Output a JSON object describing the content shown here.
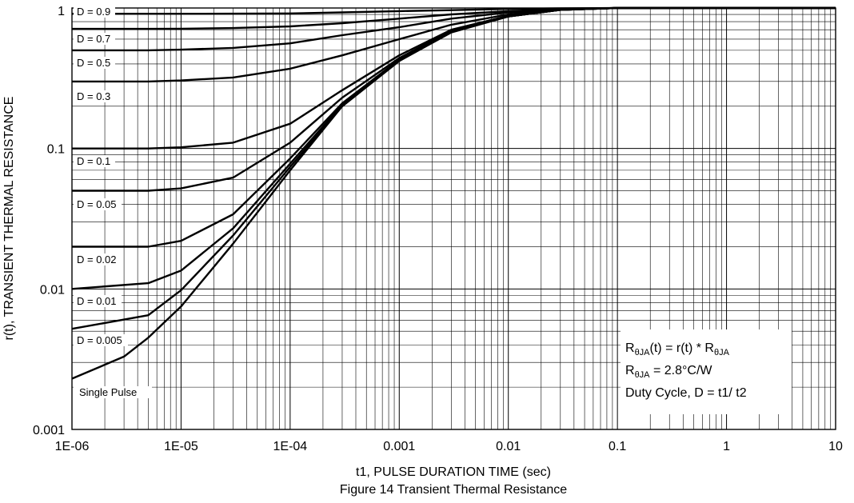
{
  "chart_data": {
    "type": "line",
    "title": "Figure 14 Transient Thermal Resistance",
    "xlabel": "t1, PULSE DURATION TIME (sec)",
    "ylabel": "r(t), TRANSIENT THERMAL RESISTANCE",
    "x_scale": "log",
    "y_scale": "log",
    "xlim": [
      1e-06,
      10
    ],
    "ylim": [
      0.001,
      1
    ],
    "grid": true,
    "x_ticks": [
      1e-06,
      1e-05,
      0.0001,
      0.001,
      0.01,
      0.1,
      1,
      10
    ],
    "x_tick_labels": [
      "1E-06",
      "1E-05",
      "1E-04",
      "0.001",
      "0.01",
      "0.1",
      "1",
      "10"
    ],
    "y_ticks": [
      0.001,
      0.01,
      0.1,
      1
    ],
    "y_tick_labels": [
      "0.001",
      "0.01",
      "0.1",
      "1"
    ],
    "series": [
      {
        "name": "D = 0.9",
        "x": [
          1e-06,
          5e-06,
          1e-05,
          3e-05,
          0.0001,
          0.0003,
          0.001,
          0.003,
          0.01,
          0.03,
          0.1,
          10
        ],
        "y": [
          0.91,
          0.91,
          0.91,
          0.911,
          0.915,
          0.93,
          0.95,
          0.965,
          0.985,
          0.995,
          1.0,
          1.0
        ]
      },
      {
        "name": "D = 0.7",
        "x": [
          1e-06,
          5e-06,
          1e-05,
          3e-05,
          0.0001,
          0.0003,
          0.001,
          0.003,
          0.01,
          0.03,
          0.1,
          10
        ],
        "y": [
          0.71,
          0.71,
          0.712,
          0.72,
          0.74,
          0.78,
          0.84,
          0.9,
          0.95,
          0.985,
          1.0,
          1.0
        ]
      },
      {
        "name": "D = 0.5",
        "x": [
          1e-06,
          5e-06,
          1e-05,
          3e-05,
          0.0001,
          0.0003,
          0.001,
          0.003,
          0.01,
          0.03,
          0.1,
          10
        ],
        "y": [
          0.5,
          0.5,
          0.505,
          0.52,
          0.56,
          0.64,
          0.73,
          0.84,
          0.93,
          0.98,
          1.0,
          1.0
        ]
      },
      {
        "name": "D = 0.3",
        "x": [
          1e-06,
          5e-06,
          1e-05,
          3e-05,
          0.0001,
          0.0003,
          0.001,
          0.003,
          0.01,
          0.03,
          0.1,
          10
        ],
        "y": [
          0.3,
          0.3,
          0.305,
          0.32,
          0.37,
          0.46,
          0.6,
          0.76,
          0.9,
          0.975,
          1.0,
          1.0
        ]
      },
      {
        "name": "D = 0.1",
        "x": [
          1e-06,
          5e-06,
          1e-05,
          3e-05,
          0.0001,
          0.0003,
          0.001,
          0.003,
          0.01,
          0.03,
          0.1,
          10
        ],
        "y": [
          0.1,
          0.1,
          0.102,
          0.11,
          0.15,
          0.26,
          0.46,
          0.7,
          0.88,
          0.97,
          1.0,
          1.0
        ]
      },
      {
        "name": "D = 0.05",
        "x": [
          1e-06,
          5e-06,
          1e-05,
          3e-05,
          0.0001,
          0.0003,
          0.001,
          0.003,
          0.01,
          0.03,
          0.1,
          10
        ],
        "y": [
          0.05,
          0.05,
          0.052,
          0.062,
          0.11,
          0.23,
          0.44,
          0.69,
          0.87,
          0.97,
          1.0,
          1.0
        ]
      },
      {
        "name": "D = 0.02",
        "x": [
          1e-06,
          5e-06,
          1e-05,
          3e-05,
          0.0001,
          0.0003,
          0.001,
          0.003,
          0.01,
          0.03,
          0.1,
          10
        ],
        "y": [
          0.02,
          0.02,
          0.022,
          0.034,
          0.085,
          0.21,
          0.43,
          0.68,
          0.87,
          0.97,
          1.0,
          1.0
        ]
      },
      {
        "name": "D = 0.01",
        "x": [
          1e-06,
          5e-06,
          1e-05,
          3e-05,
          0.0001,
          0.0003,
          0.001,
          0.003,
          0.01,
          0.03,
          0.1,
          10
        ],
        "y": [
          0.01,
          0.011,
          0.0135,
          0.027,
          0.078,
          0.205,
          0.425,
          0.68,
          0.87,
          0.97,
          1.0,
          1.0
        ]
      },
      {
        "name": "D = 0.005",
        "x": [
          1e-06,
          5e-06,
          1e-05,
          3e-05,
          0.0001,
          0.0003,
          0.001,
          0.003,
          0.01,
          0.03,
          0.1,
          10
        ],
        "y": [
          0.0052,
          0.0065,
          0.0098,
          0.024,
          0.074,
          0.2,
          0.42,
          0.675,
          0.87,
          0.97,
          1.0,
          1.0
        ]
      },
      {
        "name": "Single Pulse",
        "x": [
          1e-06,
          3e-06,
          5e-06,
          1e-05,
          3e-05,
          0.0001,
          0.0003,
          0.001,
          0.003,
          0.01,
          0.03,
          0.1,
          10
        ],
        "y": [
          0.0023,
          0.0033,
          0.0045,
          0.0075,
          0.021,
          0.07,
          0.2,
          0.42,
          0.67,
          0.87,
          0.97,
          1.0,
          1.0
        ]
      }
    ]
  },
  "curve_labels": [
    "D = 0.9",
    "D = 0.7",
    "D = 0.5",
    "D = 0.3",
    "D = 0.1",
    "D = 0.05",
    "D = 0.02",
    "D = 0.01",
    "D = 0.005",
    "Single Pulse"
  ],
  "annotation": {
    "line1": {
      "r": "R",
      "sub": "θJA",
      "rest": "(t) = r(t) * R",
      "sub2": "θJA"
    },
    "line2": {
      "r": "R",
      "sub": "θJA",
      "rest": " = 2.8°C/W"
    },
    "line3": "Duty Cycle, D = t1/ t2"
  }
}
